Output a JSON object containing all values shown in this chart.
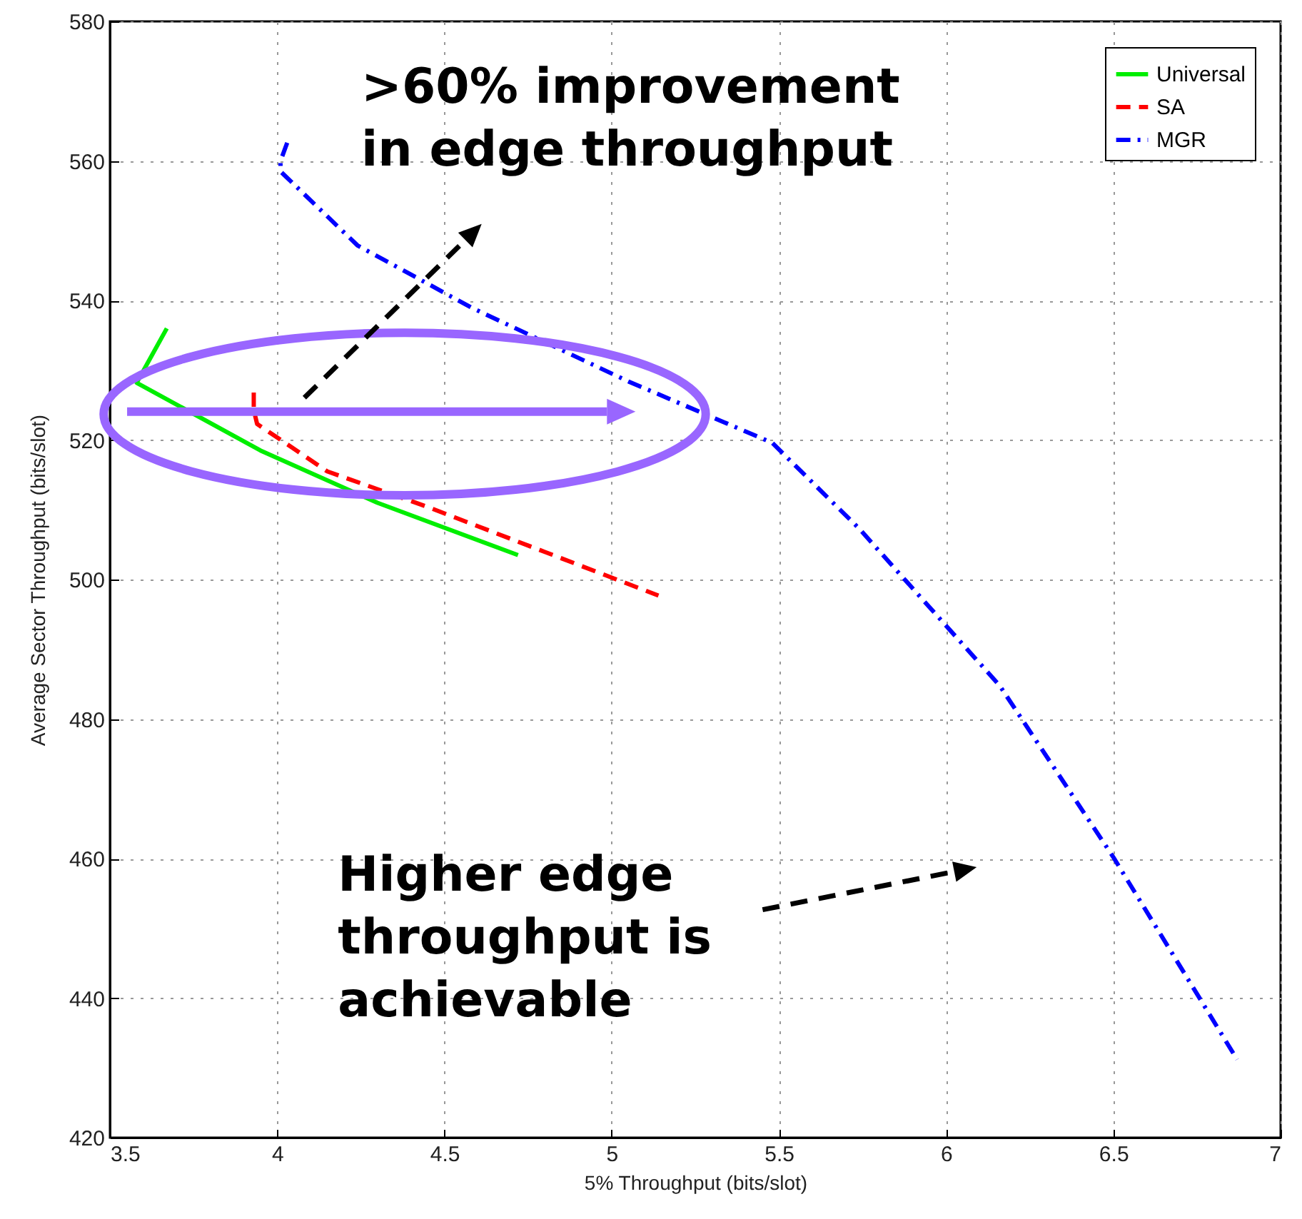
{
  "chart_data": {
    "type": "line",
    "xlabel": "5% Throughput (bits/slot)",
    "ylabel": "Average Sector Throughput (bits/slot)",
    "xlim": [
      3.5,
      7
    ],
    "xticks": [
      3.5,
      4,
      4.5,
      5,
      5.5,
      6,
      6.5,
      7
    ],
    "ylim": [
      420,
      580
    ],
    "yticks": [
      420,
      440,
      460,
      480,
      500,
      520,
      540,
      560,
      580
    ],
    "grid": true,
    "legend": "top right",
    "marker": "none",
    "series": [
      {
        "name": "Universal",
        "color": "#00ee00",
        "line_style": "solid",
        "x": [
          3.67,
          3.58,
          3.95,
          4.3,
          4.72
        ],
        "values": [
          536,
          528.2,
          518.5,
          511,
          503.5
        ]
      },
      {
        "name": "SA",
        "color": "#ff0000",
        "line_style": "dashed",
        "x": [
          3.93,
          3.93,
          3.94,
          4.15,
          4.45,
          5.14
        ],
        "values": [
          526.8,
          524.3,
          522.3,
          515.5,
          510.4,
          497.7
        ]
      },
      {
        "name": "MGR",
        "color": "#0000ff",
        "line_style": "dashdot",
        "x": [
          4.03,
          4.01,
          4.01,
          4.24,
          4.58,
          5.05,
          5.48,
          5.74,
          6.16,
          6.5,
          6.87
        ],
        "values": [
          562.6,
          560,
          558.5,
          547.9,
          539,
          528.4,
          519.6,
          507.3,
          484.8,
          460.2,
          431.2
        ]
      }
    ],
    "annotations": [
      ">60% improvement in edge throughput",
      "Higher edge throughput is achievable"
    ]
  }
}
